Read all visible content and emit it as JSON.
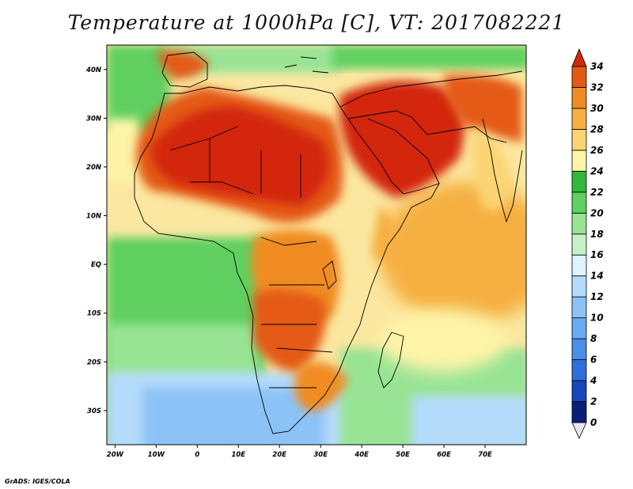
{
  "title": "Temperature at 1000hPa [C], VT: 2017082221",
  "credit": "GrADS: IGES/COLA",
  "map": {
    "lon_range": [
      -22,
      80
    ],
    "lat_range": [
      -37,
      45
    ],
    "lat_ticks": [
      {
        "value": 40,
        "label": "40N"
      },
      {
        "value": 30,
        "label": "30N"
      },
      {
        "value": 20,
        "label": "20N"
      },
      {
        "value": 10,
        "label": "10N"
      },
      {
        "value": 0,
        "label": "EQ"
      },
      {
        "value": -10,
        "label": "10S"
      },
      {
        "value": -20,
        "label": "20S"
      },
      {
        "value": -30,
        "label": "30S"
      }
    ],
    "lon_ticks": [
      {
        "value": -20,
        "label": "20W"
      },
      {
        "value": -10,
        "label": "10W"
      },
      {
        "value": 0,
        "label": "0"
      },
      {
        "value": 10,
        "label": "10E"
      },
      {
        "value": 20,
        "label": "20E"
      },
      {
        "value": 30,
        "label": "30E"
      },
      {
        "value": 40,
        "label": "40E"
      },
      {
        "value": 50,
        "label": "50E"
      },
      {
        "value": 60,
        "label": "60E"
      },
      {
        "value": 70,
        "label": "70E"
      }
    ]
  },
  "colorbar": {
    "levels": [
      0,
      2,
      4,
      6,
      8,
      10,
      12,
      14,
      16,
      18,
      20,
      22,
      24,
      26,
      28,
      30,
      32,
      34
    ],
    "colors": [
      "#0b1f78",
      "#1747b8",
      "#2e6ed9",
      "#4a8fe8",
      "#6aaaf0",
      "#8cc3f6",
      "#b4dbfa",
      "#dff4fc",
      "#c8f0c8",
      "#98e494",
      "#5fd060",
      "#32b83a",
      "#fdf4a8",
      "#fbd473",
      "#f6b043",
      "#f08c24",
      "#e45a14",
      "#d3280b",
      "#e8e3f7"
    ]
  }
}
